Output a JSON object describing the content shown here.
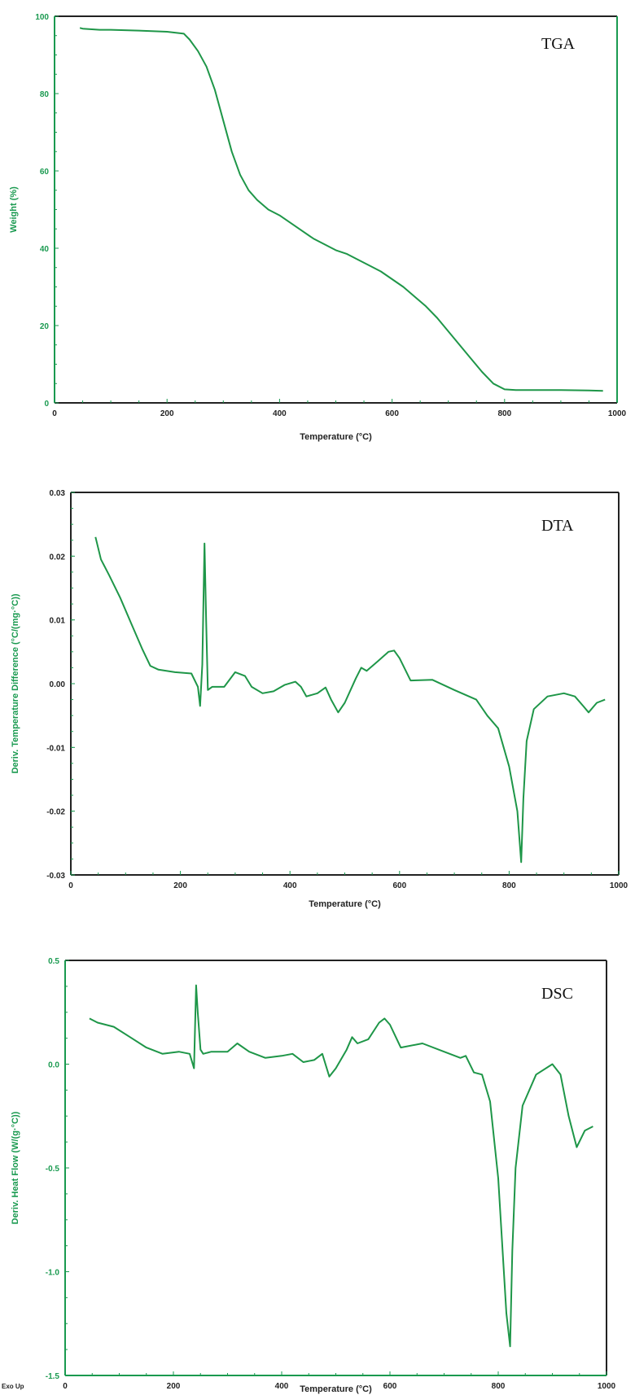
{
  "chart_data": [
    {
      "type": "line",
      "tag": "TGA",
      "xlabel": "Temperature (°C)",
      "ylabel": "Weight (%)",
      "xlim": [
        0,
        1000
      ],
      "ylim": [
        0,
        100
      ],
      "xticks": [
        0,
        200,
        400,
        600,
        800,
        1000
      ],
      "yticks": [
        0,
        20,
        40,
        60,
        80,
        100
      ],
      "ytick_labels": [
        "0",
        "20",
        "40",
        "60",
        "80",
        "100"
      ],
      "series": [
        {
          "x": [
            45,
            50,
            80,
            100,
            150,
            200,
            230,
            240,
            255,
            270,
            285,
            300,
            315,
            330,
            345,
            360,
            380,
            400,
            420,
            440,
            460,
            480,
            500,
            520,
            540,
            560,
            580,
            600,
            620,
            640,
            660,
            680,
            700,
            720,
            740,
            760,
            780,
            800,
            820,
            840,
            900,
            950,
            975
          ],
          "y": [
            97,
            96.8,
            96.5,
            96.5,
            96.3,
            96,
            95.5,
            94,
            91,
            87,
            81,
            73,
            65,
            59,
            55,
            52.5,
            50,
            48.5,
            46.5,
            44.5,
            42.5,
            41,
            39.5,
            38.5,
            37,
            35.5,
            34,
            32,
            30,
            27.5,
            25,
            22,
            18.5,
            15,
            11.5,
            8,
            5,
            3.5,
            3.3,
            3.3,
            3.3,
            3.2,
            3.1
          ]
        }
      ]
    },
    {
      "type": "line",
      "tag": "DTA",
      "xlabel": "Temperature (°C)",
      "ylabel": "Deriv. Temperature Difference (°C/(mg·°C))",
      "xlim": [
        0,
        1000
      ],
      "ylim": [
        -0.03,
        0.03
      ],
      "xticks": [
        0,
        200,
        400,
        600,
        800,
        1000
      ],
      "yticks": [
        -0.03,
        -0.02,
        -0.01,
        0,
        0.01,
        0.02,
        0.03
      ],
      "ytick_labels": [
        "-0.03",
        "-0.02",
        "-0.01",
        "0.00",
        "0.01",
        "0.02",
        "0.03"
      ],
      "series": [
        {
          "x": [
            45,
            55,
            70,
            90,
            110,
            130,
            145,
            160,
            190,
            220,
            232,
            236,
            240,
            244,
            247,
            250,
            253,
            258,
            280,
            300,
            318,
            330,
            350,
            370,
            390,
            410,
            420,
            430,
            450,
            465,
            475,
            488,
            500,
            520,
            530,
            540,
            560,
            580,
            590,
            600,
            620,
            660,
            700,
            740,
            760,
            780,
            800,
            815,
            822,
            826,
            832,
            845,
            870,
            900,
            920,
            935,
            945,
            960,
            975
          ],
          "y": [
            0.023,
            0.0195,
            0.017,
            0.0135,
            0.0095,
            0.0055,
            0.0028,
            0.0022,
            0.0018,
            0.0016,
            -0.0005,
            -0.0035,
            0.003,
            0.022,
            0.01,
            -0.001,
            -0.0008,
            -0.0005,
            -0.0005,
            0.0018,
            0.0012,
            -0.0005,
            -0.0015,
            -0.0012,
            -0.0002,
            0.0003,
            -0.0005,
            -0.002,
            -0.0015,
            -0.0006,
            -0.0025,
            -0.0045,
            -0.003,
            0.0008,
            0.0025,
            0.002,
            0.0035,
            0.005,
            0.0052,
            0.004,
            0.0005,
            0.0006,
            -0.001,
            -0.0025,
            -0.005,
            -0.007,
            -0.013,
            -0.02,
            -0.028,
            -0.018,
            -0.009,
            -0.004,
            -0.002,
            -0.0015,
            -0.002,
            -0.0035,
            -0.0045,
            -0.003,
            -0.0025
          ]
        }
      ]
    },
    {
      "type": "line",
      "tag": "DSC",
      "xlabel": "Temperature (°C)",
      "ylabel": "Deriv. Heat Flow (W/(g·°C))",
      "xlim": [
        0,
        1000
      ],
      "ylim": [
        -1.5,
        0.5
      ],
      "xticks": [
        0,
        200,
        400,
        600,
        800,
        1000
      ],
      "yticks": [
        -1.5,
        -1.0,
        -0.5,
        0.0,
        0.5
      ],
      "ytick_labels": [
        "-1.5",
        "-1.0",
        "-0.5",
        "0.0",
        "0.5"
      ],
      "corner_note": "Exo Up",
      "series": [
        {
          "x": [
            45,
            60,
            90,
            120,
            150,
            180,
            210,
            230,
            238,
            242,
            245,
            250,
            255,
            270,
            300,
            318,
            340,
            370,
            400,
            420,
            440,
            460,
            475,
            488,
            500,
            520,
            530,
            540,
            560,
            580,
            590,
            600,
            620,
            660,
            700,
            730,
            740,
            755,
            770,
            785,
            800,
            815,
            822,
            826,
            832,
            845,
            870,
            900,
            915,
            930,
            945,
            960,
            975
          ],
          "y": [
            0.22,
            0.2,
            0.18,
            0.13,
            0.08,
            0.05,
            0.06,
            0.05,
            -0.02,
            0.38,
            0.25,
            0.07,
            0.05,
            0.06,
            0.06,
            0.1,
            0.06,
            0.03,
            0.04,
            0.05,
            0.01,
            0.02,
            0.05,
            -0.06,
            -0.02,
            0.07,
            0.13,
            0.1,
            0.12,
            0.2,
            0.22,
            0.19,
            0.08,
            0.1,
            0.06,
            0.03,
            0.04,
            -0.04,
            -0.05,
            -0.18,
            -0.55,
            -1.2,
            -1.36,
            -0.9,
            -0.5,
            -0.2,
            -0.05,
            0.0,
            -0.05,
            -0.25,
            -0.4,
            -0.32,
            -0.3
          ]
        }
      ]
    }
  ]
}
